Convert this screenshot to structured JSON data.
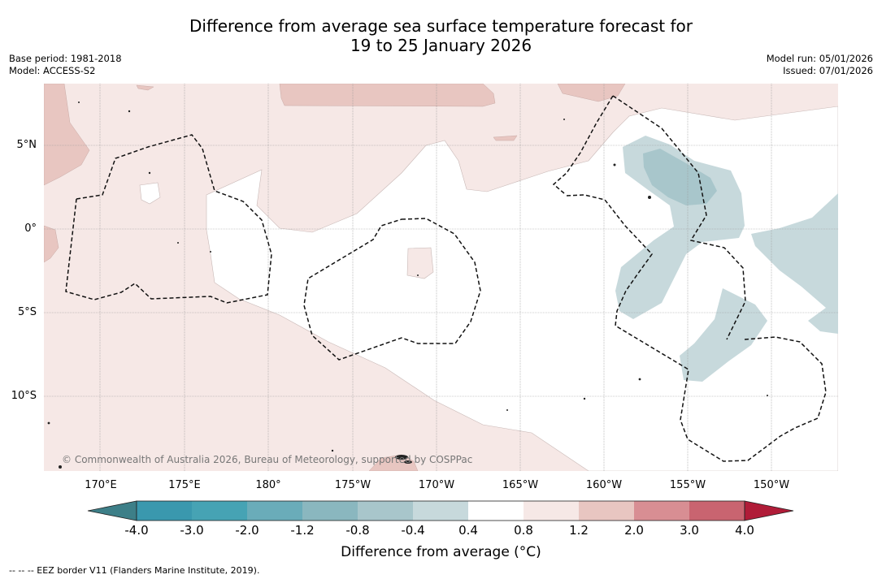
{
  "title": {
    "line1": "Difference from average sea surface temperature forecast for",
    "line2": "19 to 25 January 2026"
  },
  "meta_left": {
    "base_period": "Base period: 1981-2018",
    "model": "Model: ACCESS-S2"
  },
  "meta_right": {
    "model_run": "Model run: 05/01/2026",
    "issued": "Issued: 07/01/2026"
  },
  "longitude_labels": [
    "170°E",
    "175°E",
    "180°",
    "175°W",
    "170°W",
    "165°W",
    "160°W",
    "155°W",
    "150°W"
  ],
  "latitude_labels": [
    "5°N",
    "0°",
    "5°S",
    "10°S"
  ],
  "copyright": "© Commonwealth of Australia 2026, Bureau of Meteorology, supported by COSPPac",
  "colorbar": {
    "ticks": [
      "-4.0",
      "-3.0",
      "-2.0",
      "-1.2",
      "-0.8",
      "-0.4",
      "0.4",
      "0.8",
      "1.2",
      "2.0",
      "3.0",
      "4.0"
    ],
    "colors": [
      "#3a98ae",
      "#46a3b4",
      "#6aacb9",
      "#8ab7bf",
      "#a8c6cb",
      "#c7d9dc",
      "#ffffff",
      "#f6e8e6",
      "#e8c6c1",
      "#d88e93",
      "#c96470",
      "#bd4456"
    ],
    "title": "Difference from average (°C)"
  },
  "legend_note": "--  --  -- EEZ border V11 (Flanders Marine Institute, 2019)."
}
